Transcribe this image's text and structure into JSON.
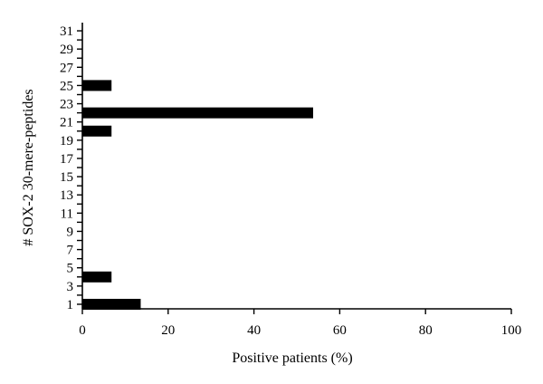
{
  "chart_data": {
    "type": "bar",
    "orientation": "horizontal",
    "title": "",
    "xlabel": "Positive patients (%)",
    "ylabel": "# SOX-2 30-mere-peptides",
    "xlim": [
      0,
      100
    ],
    "xticks": [
      0,
      20,
      40,
      60,
      80,
      100
    ],
    "ylim": [
      0.5,
      31.5
    ],
    "yticks_labeled": [
      1,
      3,
      5,
      7,
      9,
      11,
      13,
      15,
      17,
      19,
      21,
      23,
      25,
      27,
      29,
      31
    ],
    "categories": [
      1,
      2,
      3,
      4,
      5,
      6,
      7,
      8,
      9,
      10,
      11,
      12,
      13,
      14,
      15,
      16,
      17,
      18,
      19,
      20,
      21,
      22,
      23,
      24,
      25,
      26,
      27,
      28,
      29,
      30,
      31
    ],
    "values": [
      13.6,
      0,
      0,
      6.8,
      0,
      0,
      0,
      0,
      0,
      0,
      0,
      0,
      0,
      0,
      0,
      0,
      0,
      0,
      0,
      6.8,
      0,
      53.8,
      0,
      0,
      6.8,
      0,
      0,
      0,
      0,
      0,
      0
    ],
    "bar_color": "#000000",
    "grid": false,
    "legend": "none"
  }
}
